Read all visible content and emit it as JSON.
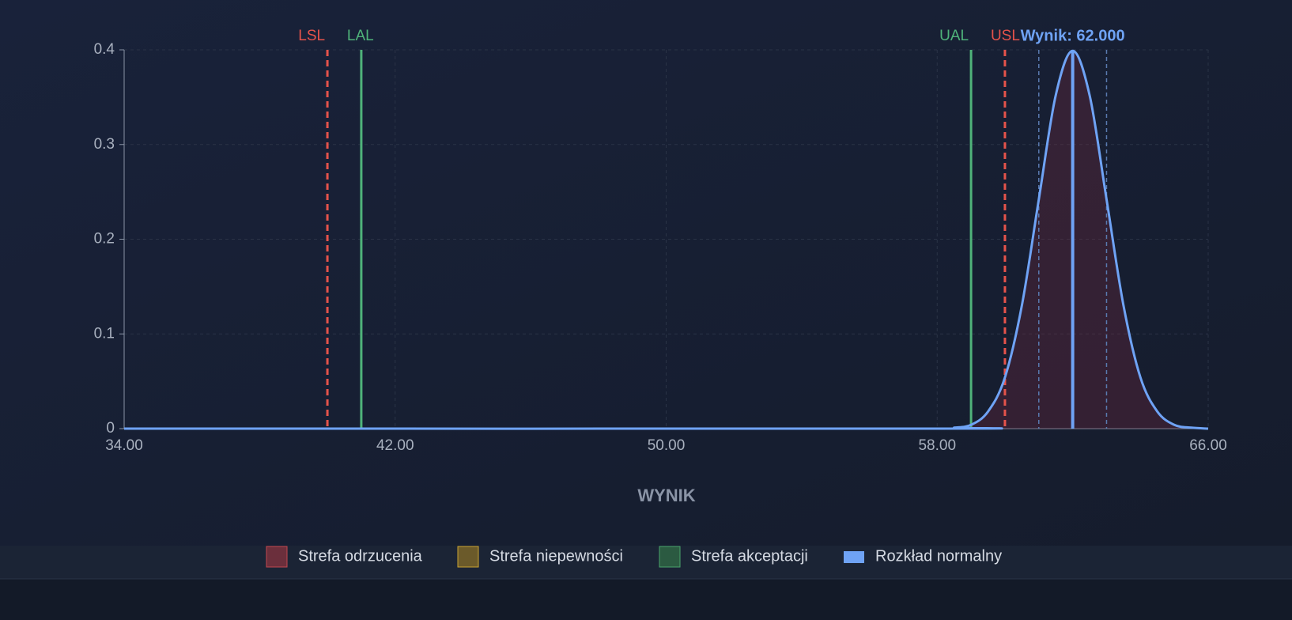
{
  "chart_data": {
    "type": "line",
    "x_label": "WYNIK",
    "xlim": [
      34,
      66
    ],
    "xticks": [
      {
        "value": 34,
        "label": "34.00"
      },
      {
        "value": 42,
        "label": "42.00"
      },
      {
        "value": 50,
        "label": "50.00"
      },
      {
        "value": 58,
        "label": "58.00"
      },
      {
        "value": 66,
        "label": "66.00"
      }
    ],
    "ylim": [
      0,
      0.4
    ],
    "yticks": [
      0,
      0.1,
      0.2,
      0.3,
      0.4
    ],
    "grid": true,
    "series": [
      {
        "name": "Rozkład normalny",
        "color": "#6fa3f5",
        "x": [
          34,
          58,
          58.5,
          59,
          59.5,
          60,
          60.5,
          61,
          61.5,
          62,
          62.5,
          63,
          63.5,
          64,
          64.5,
          65,
          65.5,
          66
        ],
        "values": [
          0,
          0,
          0.001,
          0.004,
          0.018,
          0.054,
          0.13,
          0.242,
          0.352,
          0.399,
          0.352,
          0.242,
          0.13,
          0.054,
          0.018,
          0.004,
          0.001,
          0
        ]
      }
    ],
    "limits": [
      {
        "name": "LSL",
        "value": 40,
        "color": "#e5534b",
        "dashed": true
      },
      {
        "name": "LAL",
        "value": 41,
        "color": "#4fb37a",
        "dashed": false
      },
      {
        "name": "UAL",
        "value": 59,
        "color": "#4fb37a",
        "dashed": false
      },
      {
        "name": "USL",
        "value": 60,
        "color": "#e5534b",
        "dashed": true
      }
    ],
    "sigma_lines": [
      61,
      63
    ],
    "result": {
      "label": "Wynik: 62.000",
      "value": 62,
      "color": "#6fa3f5"
    },
    "legend": [
      {
        "name": "Strefa odrzucenia",
        "color": "#6b2f3c",
        "border": "#c0474f"
      },
      {
        "name": "Strefa niepewności",
        "color": "#6b5a2a",
        "border": "#c9a233"
      },
      {
        "name": "Strefa akceptacji",
        "color": "#2b5a41",
        "border": "#48a36b"
      },
      {
        "name": "Rozkład normalny",
        "color": "#6fa3f5",
        "border": "#6fa3f5"
      }
    ]
  }
}
